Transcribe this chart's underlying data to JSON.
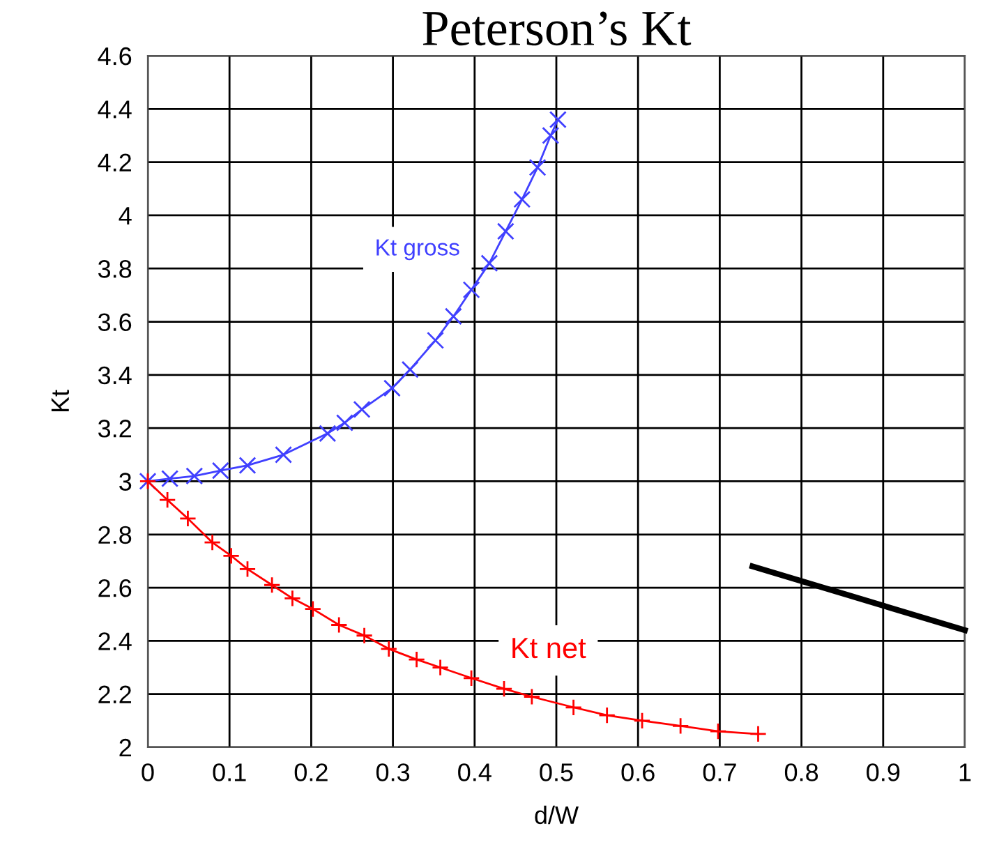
{
  "chart_data": {
    "type": "line",
    "title": "Peterson’s Kt",
    "xlabel": "d/W",
    "ylabel": "Kt",
    "xlim": [
      0,
      1
    ],
    "xticks": [
      0,
      0.1,
      0.2,
      0.3,
      0.4,
      0.5,
      0.6,
      0.7,
      0.8,
      0.9,
      1
    ],
    "ylim": [
      2,
      4.6
    ],
    "yticks": [
      2,
      2.2,
      2.4,
      2.6,
      2.8,
      3,
      3.2,
      3.4,
      3.6,
      3.8,
      4,
      4.2,
      4.4,
      4.6
    ],
    "grid": true,
    "legend": false,
    "series": [
      {
        "name": "Kt gross",
        "color": "#4040ff",
        "marker": "x",
        "x": [
          0,
          0.027,
          0.057,
          0.089,
          0.122,
          0.166,
          0.22,
          0.241,
          0.262,
          0.299,
          0.321,
          0.352,
          0.374,
          0.396,
          0.418,
          0.438,
          0.458,
          0.477,
          0.493,
          0.502
        ],
        "values": [
          3.0,
          3.01,
          3.02,
          3.04,
          3.06,
          3.1,
          3.18,
          3.22,
          3.27,
          3.35,
          3.42,
          3.53,
          3.62,
          3.72,
          3.82,
          3.94,
          4.06,
          4.18,
          4.3,
          4.36
        ]
      },
      {
        "name": "Kt net",
        "color": "#ff0000",
        "marker": "cross",
        "x": [
          0,
          0.024,
          0.049,
          0.079,
          0.102,
          0.122,
          0.152,
          0.177,
          0.202,
          0.234,
          0.265,
          0.295,
          0.329,
          0.358,
          0.396,
          0.436,
          0.47,
          0.521,
          0.562,
          0.605,
          0.652,
          0.698,
          0.747
        ],
        "values": [
          3.0,
          2.93,
          2.86,
          2.77,
          2.72,
          2.67,
          2.61,
          2.56,
          2.52,
          2.46,
          2.42,
          2.37,
          2.33,
          2.3,
          2.26,
          2.22,
          2.19,
          2.15,
          2.12,
          2.1,
          2.08,
          2.06,
          2.05
        ]
      },
      {
        "color": "#000000",
        "marker": "none",
        "x": [
          0.74,
          1.0
        ],
        "values": [
          2.68,
          2.44
        ]
      }
    ]
  }
}
